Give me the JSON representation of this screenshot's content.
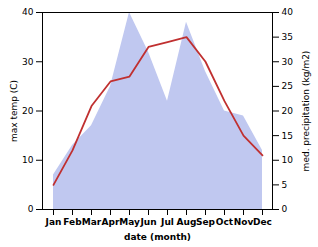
{
  "chart_data": {
    "type": "line",
    "categories": [
      "Jan",
      "Feb",
      "Mar",
      "Apr",
      "May",
      "Jun",
      "Jul",
      "Aug",
      "Sep",
      "Oct",
      "Nov",
      "Dec"
    ],
    "xlabel": "date (month)",
    "ylabel": "max temp (C)",
    "y2label": "med. precipitation (kg/m2)",
    "ylim": [
      0,
      40
    ],
    "yticks": [
      0,
      10,
      20,
      30,
      40
    ],
    "y2lim": [
      0,
      40
    ],
    "y2ticks": [
      0,
      5,
      10,
      15,
      20,
      25,
      30,
      35,
      40
    ],
    "series": [
      {
        "type": "area",
        "axis": "y2",
        "color": "#c0c8f0",
        "values": [
          7,
          13,
          17,
          25,
          40,
          32,
          22,
          38,
          28,
          20,
          19,
          12
        ]
      },
      {
        "type": "line",
        "color": "#c03030",
        "values": [
          5,
          12,
          21,
          26,
          27,
          33,
          34,
          35,
          30,
          22,
          15,
          11
        ]
      }
    ]
  }
}
